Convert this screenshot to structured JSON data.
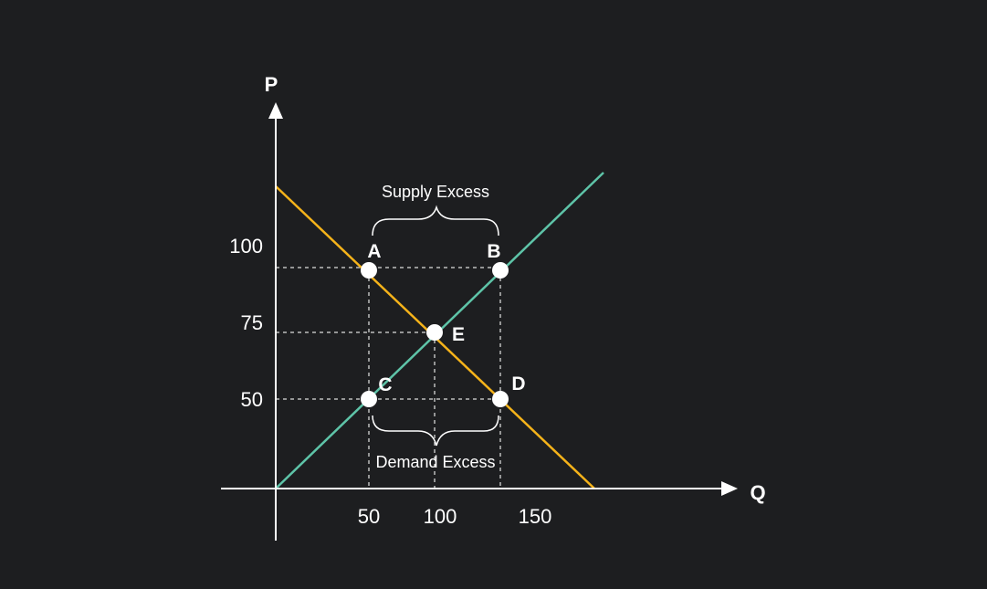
{
  "diagram": {
    "axes": {
      "x_label": "Q",
      "y_label": "P"
    },
    "x_ticks": [
      "50",
      "100",
      "150"
    ],
    "y_ticks": [
      "100",
      "75",
      "50"
    ],
    "points": {
      "A": {
        "label": "A",
        "q": 50,
        "p": 95
      },
      "B": {
        "label": "B",
        "q": 135,
        "p": 95
      },
      "E": {
        "label": "E",
        "q": 100,
        "p": 75
      },
      "C": {
        "label": "C",
        "q": 50,
        "p": 50
      },
      "D": {
        "label": "D",
        "q": 135,
        "p": 50
      }
    },
    "annotations": {
      "supply_excess": "Supply Excess",
      "demand_excess": "Demand Excess"
    },
    "colors": {
      "background": "#1d1e20",
      "axes": "#ffffff",
      "demand": "#f5b31a",
      "supply": "#5ec4a8",
      "guides": "#bdbdbd",
      "text": "#ffffff",
      "points": "#ffffff"
    }
  }
}
